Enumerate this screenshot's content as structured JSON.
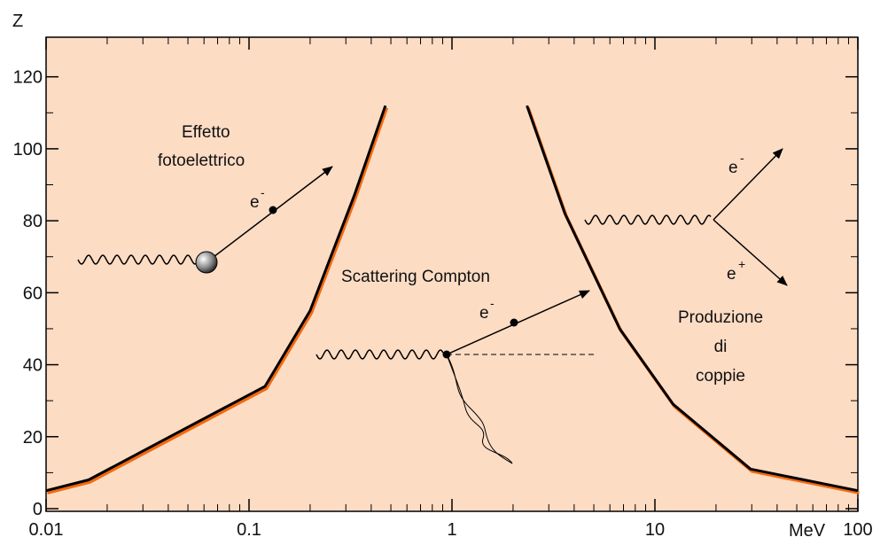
{
  "chart_data": {
    "type": "line",
    "y_label": "Z",
    "x_label": "MeV",
    "xlog": true,
    "xlim": [
      0.01,
      100
    ],
    "xticks": [
      0.01,
      0.1,
      1,
      10,
      100
    ],
    "ylim": [
      0,
      131
    ],
    "yticks": [
      0,
      20,
      40,
      60,
      80,
      100,
      120
    ],
    "series": [
      {
        "color": "#000000",
        "shadow": "#f26a10",
        "x": [
          0.01,
          0.0162,
          0.044,
          0.12,
          0.2,
          0.33,
          0.47
        ],
        "values": [
          5,
          8,
          21,
          34,
          55,
          87,
          112
        ]
      },
      {
        "color": "#000000",
        "shadow": "#f26a10",
        "x": [
          2.34,
          3.6,
          6.7,
          12.3,
          29.6,
          100
        ],
        "values": [
          112,
          82,
          50,
          29,
          11,
          5
        ]
      }
    ],
    "annotations": {
      "photo": [
        "Effetto",
        "fotoelettrico"
      ],
      "compton": "Scattering  Compton",
      "pair": [
        "Produzione",
        "di",
        "coppie"
      ],
      "electron": "e",
      "minus": "-",
      "plus": "+"
    }
  }
}
